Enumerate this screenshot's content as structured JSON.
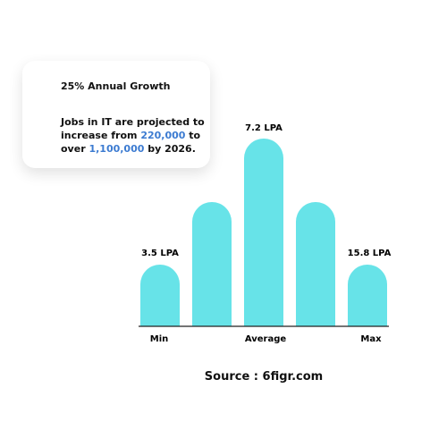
{
  "card": {
    "items": [
      {
        "text": "25% Annual Growth"
      },
      {
        "parts": [
          "Jobs in IT are projected to increase from ",
          "220,000",
          " to over ",
          "1,100,000",
          " by 2026."
        ]
      }
    ]
  },
  "graphic": {
    "bar_labels": [
      "3.5 LPA",
      "7.2 LPA",
      "15.8 LPA"
    ],
    "axis_labels": [
      "Min",
      "Average",
      "Max"
    ]
  },
  "source": "Source : 6figr.com"
}
